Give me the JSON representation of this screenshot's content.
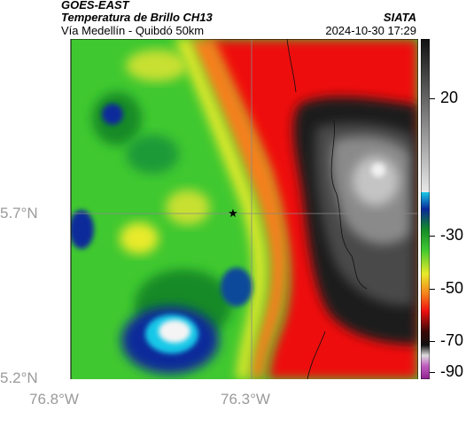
{
  "header": {
    "satellite": "GOES-EAST",
    "product": "Temperatura de Brillo CH13",
    "location": "Vía Medellín - Quibdó 50km",
    "agency": "SIATA",
    "datetime": "2024-10-30 17:29"
  },
  "map": {
    "lat_labels": [
      "5.7°N",
      "5.2°N"
    ],
    "lon_labels": [
      "76.8°W",
      "76.3°W"
    ],
    "marker": "star-marker",
    "colors": {
      "cold_dark": "#1a1a1a",
      "gray": "#8a8a8a",
      "light": "#e8e8e8",
      "red": "#ee1010",
      "orange": "#f5801a",
      "yellow": "#e8ea2a",
      "green": "#3ecb2a",
      "darkgreen": "#148a28",
      "blue": "#0a2a9a",
      "cyan": "#18c8e8"
    }
  },
  "colorbar": {
    "labels": [
      "20",
      "-30",
      "-50",
      "-70",
      "-90"
    ]
  }
}
